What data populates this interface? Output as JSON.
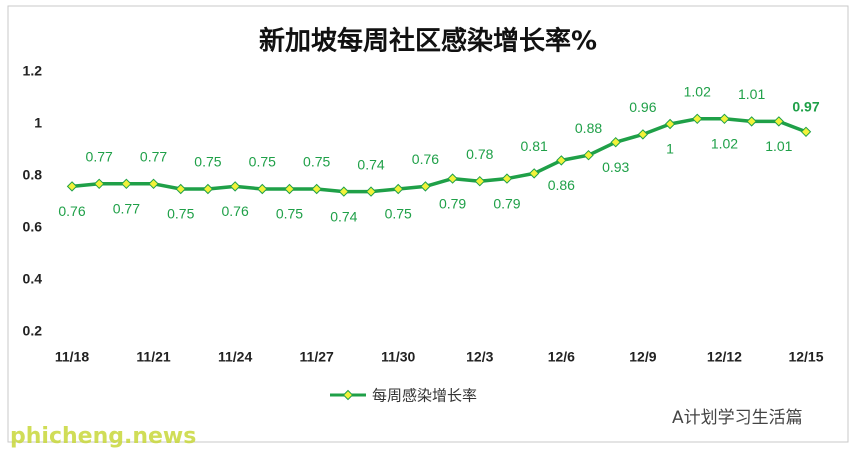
{
  "chart_data": {
    "type": "line",
    "title": "新加坡每周社区感染增长率%",
    "categories": [
      "11/18",
      null,
      null,
      "11/21",
      null,
      null,
      "11/24",
      null,
      null,
      "11/27",
      null,
      null,
      "11/30",
      null,
      null,
      "12/3",
      null,
      null,
      "12/6",
      null,
      null,
      "12/9",
      null,
      null,
      "12/12",
      null,
      null,
      "12/15"
    ],
    "series": [
      {
        "name": "每周感染增长率",
        "color": "#1fa048",
        "marker_color": "#f2f23a",
        "values": [
          0.76,
          0.77,
          0.77,
          0.77,
          0.75,
          0.75,
          0.76,
          0.75,
          0.75,
          0.75,
          0.74,
          0.74,
          0.75,
          0.76,
          0.79,
          0.78,
          0.79,
          0.81,
          0.86,
          0.88,
          0.93,
          0.96,
          1,
          1.02,
          1.02,
          1.01,
          1.01,
          0.97
        ]
      }
    ],
    "ylim": [
      0.2,
      1.2
    ],
    "yticks": [
      0.2,
      0.4,
      0.6,
      0.8,
      1,
      1.2
    ],
    "grid": false,
    "legend": "bottom"
  },
  "watermarks": [
    "phicheng.news",
    "A计划学习生活篇"
  ]
}
